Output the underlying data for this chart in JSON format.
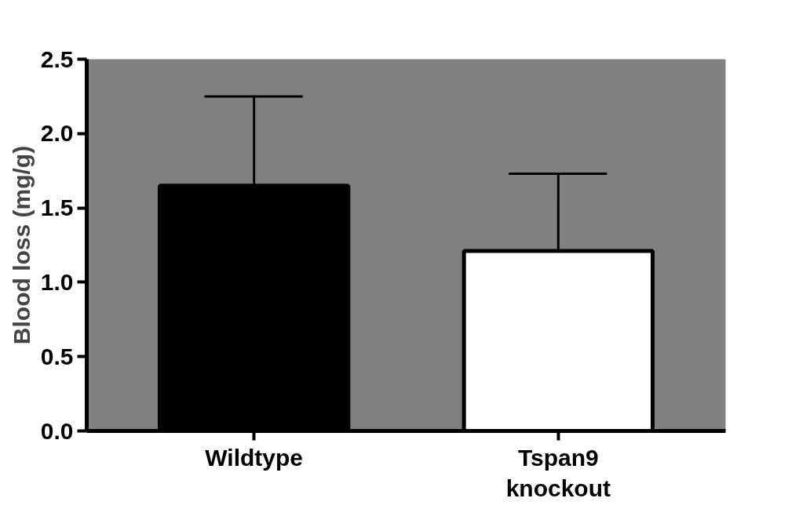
{
  "chart_data": {
    "type": "bar",
    "ylabel": "Blood loss (mg/g)",
    "categories": [
      "Wildtype",
      "Tspan9\nknockout"
    ],
    "values": [
      1.65,
      1.21
    ],
    "colors": [
      "#000000",
      "#ffffff"
    ],
    "errors": [
      [
        1.65,
        2.25
      ],
      [
        1.21,
        1.73
      ]
    ],
    "ylim": [
      0,
      2.5
    ],
    "yticks": [
      {
        "value": 0,
        "label": "0.0"
      },
      {
        "value": 0.5,
        "label": "0.5"
      },
      {
        "value": 1,
        "label": "1.0"
      },
      {
        "value": 1.5,
        "label": "1.5"
      },
      {
        "value": 2,
        "label": "2.0"
      },
      {
        "value": 2.5,
        "label": "2.5"
      }
    ],
    "grid": false
  }
}
